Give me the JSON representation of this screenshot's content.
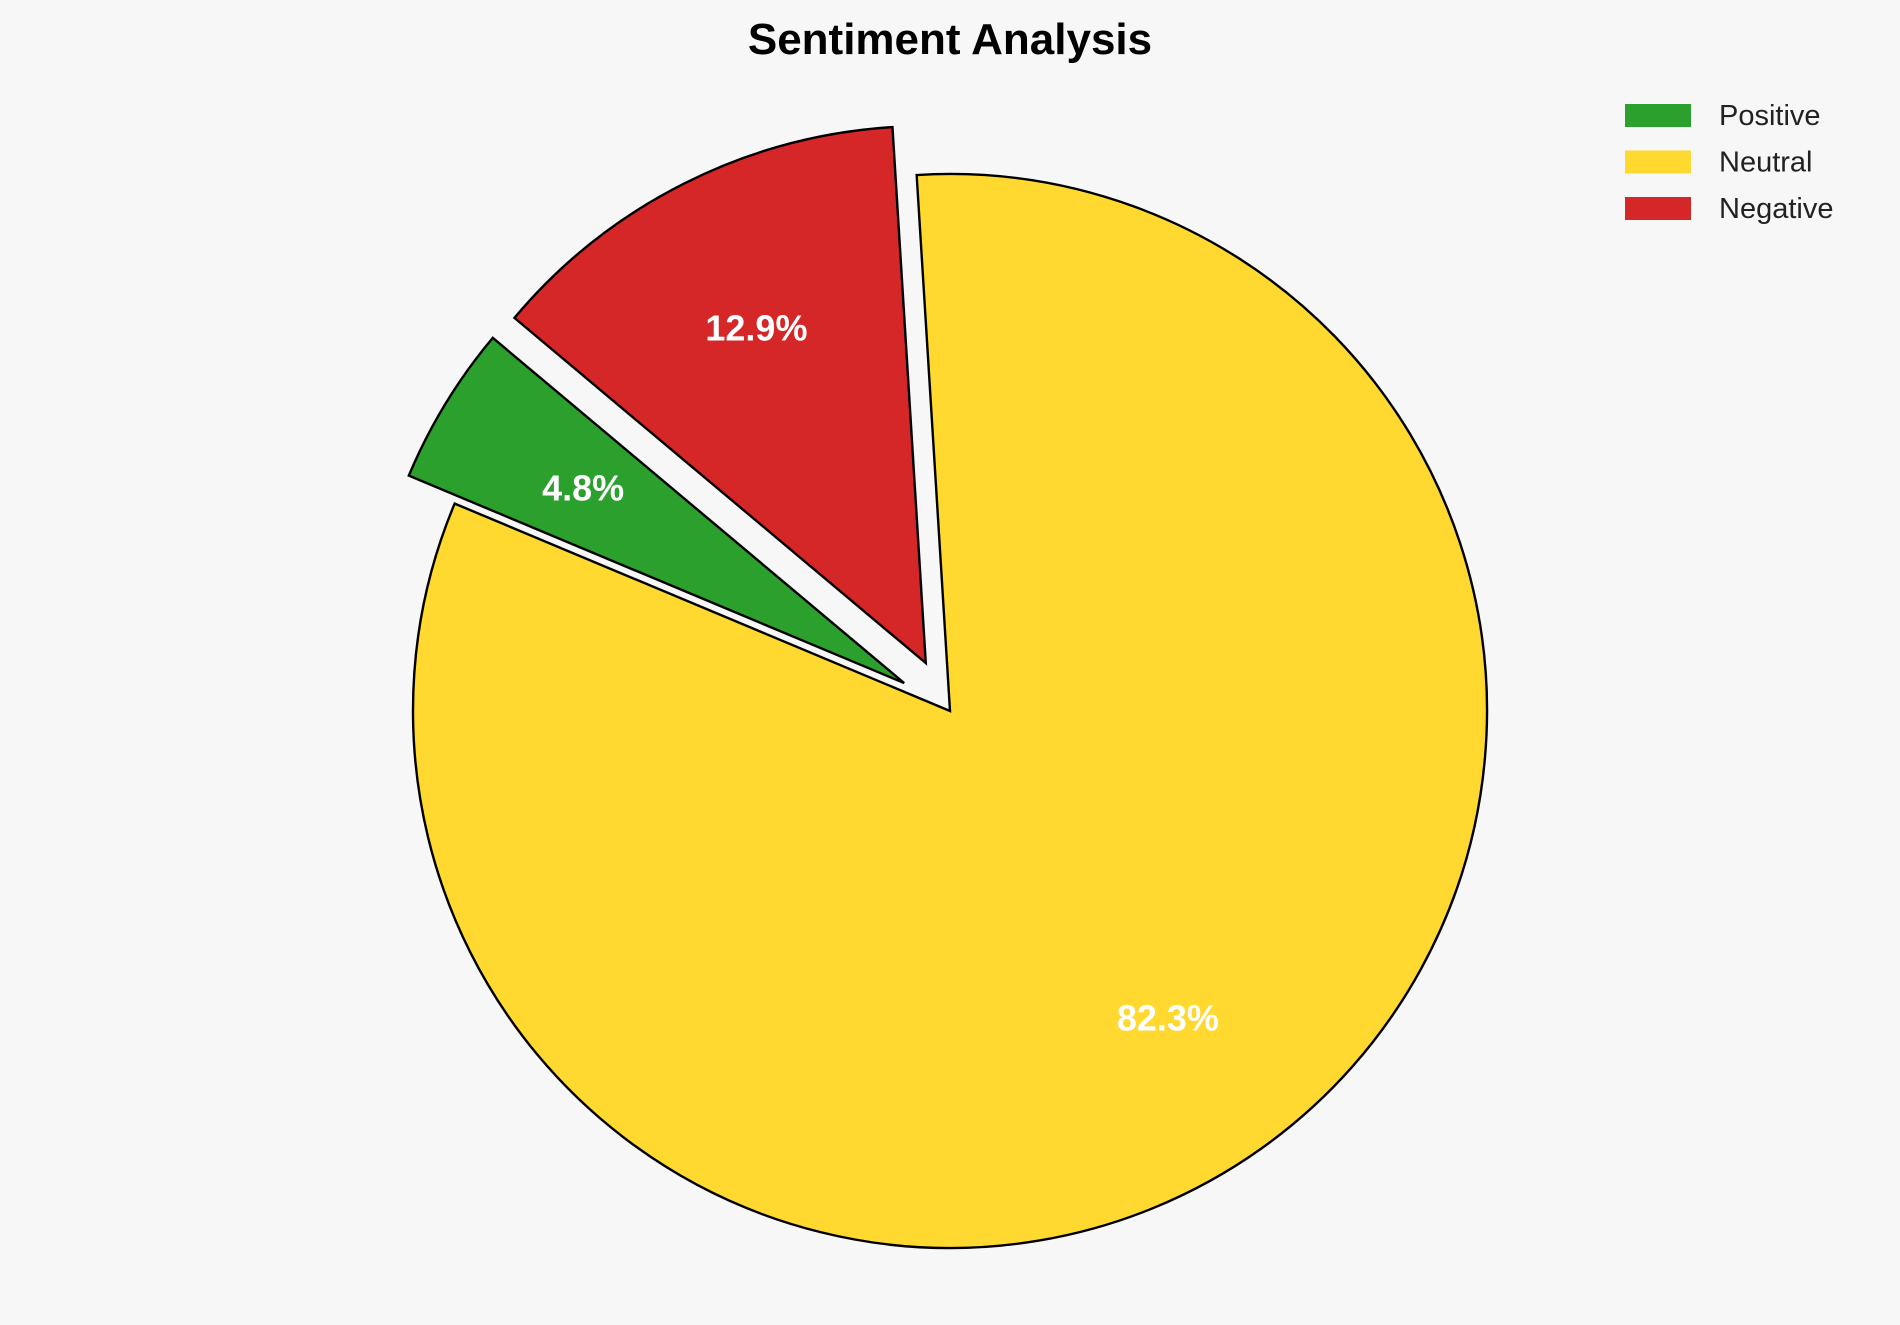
{
  "chart_data": {
    "type": "pie",
    "title": "Sentiment Analysis",
    "categories": [
      "Positive",
      "Neutral",
      "Negative"
    ],
    "values": [
      4.8,
      82.3,
      12.9
    ],
    "labels": [
      "4.8%",
      "82.3%",
      "12.9%"
    ],
    "colors": [
      "#2ca02c",
      "#ffd92f",
      "#d62728"
    ],
    "exploded": [
      true,
      false,
      true
    ],
    "start_angle_deg": 140,
    "direction": "counterclockwise",
    "legend_position": "top-right"
  }
}
